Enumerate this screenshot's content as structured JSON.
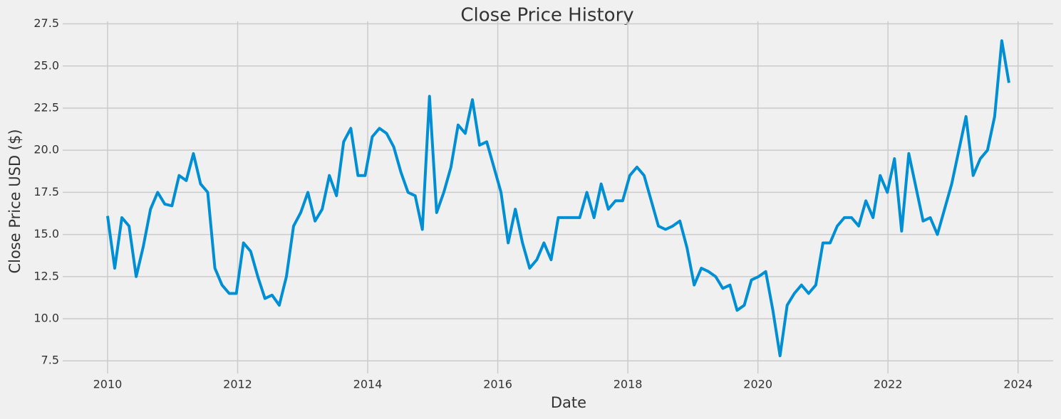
{
  "chart_data": {
    "type": "line",
    "title": "Close Price History",
    "x_label": "Date",
    "y_label": "Close Price USD ($)",
    "color": "#008fd5",
    "grid": true,
    "xlim": [
      2009.31,
      2024.54
    ],
    "xticks": [
      2010,
      2012,
      2014,
      2016,
      2018,
      2020,
      2022,
      2024
    ],
    "ylim": [
      6.75,
      27.65
    ],
    "yticks": [
      7.5,
      {
        "value": 10,
        "label": "10.0"
      },
      12.5,
      {
        "value": 15,
        "label": "15.0"
      },
      17.5,
      {
        "value": 20,
        "label": "20.0"
      },
      22.5,
      {
        "value": 25,
        "label": "25.0"
      },
      27.5
    ],
    "x": [
      2010.0,
      2010.11,
      2010.22,
      2010.33,
      2010.44,
      2010.55,
      2010.66,
      2010.77,
      2010.88,
      2010.99,
      2011.1,
      2011.21,
      2011.32,
      2011.43,
      2011.54,
      2011.65,
      2011.76,
      2011.87,
      2011.98,
      2012.09,
      2012.2,
      2012.31,
      2012.42,
      2012.53,
      2012.64,
      2012.75,
      2012.86,
      2012.97,
      2013.08,
      2013.19,
      2013.3,
      2013.41,
      2013.52,
      2013.63,
      2013.74,
      2013.85,
      2013.96,
      2014.07,
      2014.18,
      2014.29,
      2014.4,
      2014.51,
      2014.62,
      2014.73,
      2014.84,
      2014.95,
      2015.06,
      2015.17,
      2015.28,
      2015.39,
      2015.5,
      2015.61,
      2015.72,
      2015.83,
      2015.94,
      2016.05,
      2016.16,
      2016.27,
      2016.38,
      2016.49,
      2016.6,
      2016.71,
      2016.82,
      2016.93,
      2017.04,
      2017.15,
      2017.26,
      2017.37,
      2017.48,
      2017.59,
      2017.7,
      2017.81,
      2017.92,
      2018.03,
      2018.14,
      2018.25,
      2018.36,
      2018.47,
      2018.58,
      2018.69,
      2018.8,
      2018.91,
      2019.02,
      2019.13,
      2019.24,
      2019.35,
      2019.46,
      2019.57,
      2019.68,
      2019.79,
      2019.9,
      2020.01,
      2020.12,
      2020.23,
      2020.34,
      2020.45,
      2020.56,
      2020.67,
      2020.78,
      2020.89,
      2021.0,
      2021.11,
      2021.22,
      2021.33,
      2021.44,
      2021.55,
      2021.66,
      2021.77,
      2021.88,
      2021.99,
      2022.1,
      2022.21,
      2022.32,
      2022.43,
      2022.54,
      2022.65,
      2022.76,
      2022.87,
      2022.98,
      2023.09,
      2023.2,
      2023.31,
      2023.42,
      2023.53,
      2023.64,
      2023.75,
      2023.86
    ],
    "values": [
      16.1,
      13.0,
      16.0,
      15.5,
      12.5,
      14.3,
      16.5,
      17.5,
      16.8,
      16.7,
      18.5,
      18.2,
      19.8,
      18.0,
      17.5,
      13.0,
      12.0,
      11.5,
      11.5,
      14.5,
      14.0,
      12.5,
      11.2,
      11.4,
      10.8,
      12.5,
      15.5,
      16.3,
      17.5,
      15.8,
      16.5,
      18.5,
      17.3,
      20.5,
      21.3,
      18.5,
      18.5,
      20.8,
      21.3,
      21.0,
      20.2,
      18.7,
      17.5,
      17.3,
      15.3,
      23.2,
      16.3,
      17.5,
      19.0,
      21.5,
      21.0,
      23.0,
      20.3,
      20.5,
      19.0,
      17.5,
      14.5,
      16.5,
      14.5,
      13.0,
      13.5,
      14.5,
      13.5,
      16.0,
      16.0,
      16.0,
      16.0,
      17.5,
      16.0,
      18.0,
      16.5,
      17.0,
      17.0,
      18.5,
      19.0,
      18.5,
      17.0,
      15.5,
      15.3,
      15.5,
      15.8,
      14.2,
      12.0,
      13.0,
      12.8,
      12.5,
      11.8,
      12.0,
      10.5,
      10.8,
      12.3,
      12.5,
      12.8,
      10.5,
      7.8,
      10.8,
      11.5,
      12.0,
      11.5,
      12.0,
      14.5,
      14.5,
      15.5,
      16.0,
      16.0,
      15.5,
      17.0,
      16.0,
      18.5,
      17.5,
      19.5,
      15.2,
      19.8,
      17.8,
      15.8,
      16.0,
      15.0,
      16.5,
      18.0,
      20.0,
      22.0,
      18.5,
      19.5,
      20.0,
      22.0,
      26.5,
      24.0
    ]
  }
}
